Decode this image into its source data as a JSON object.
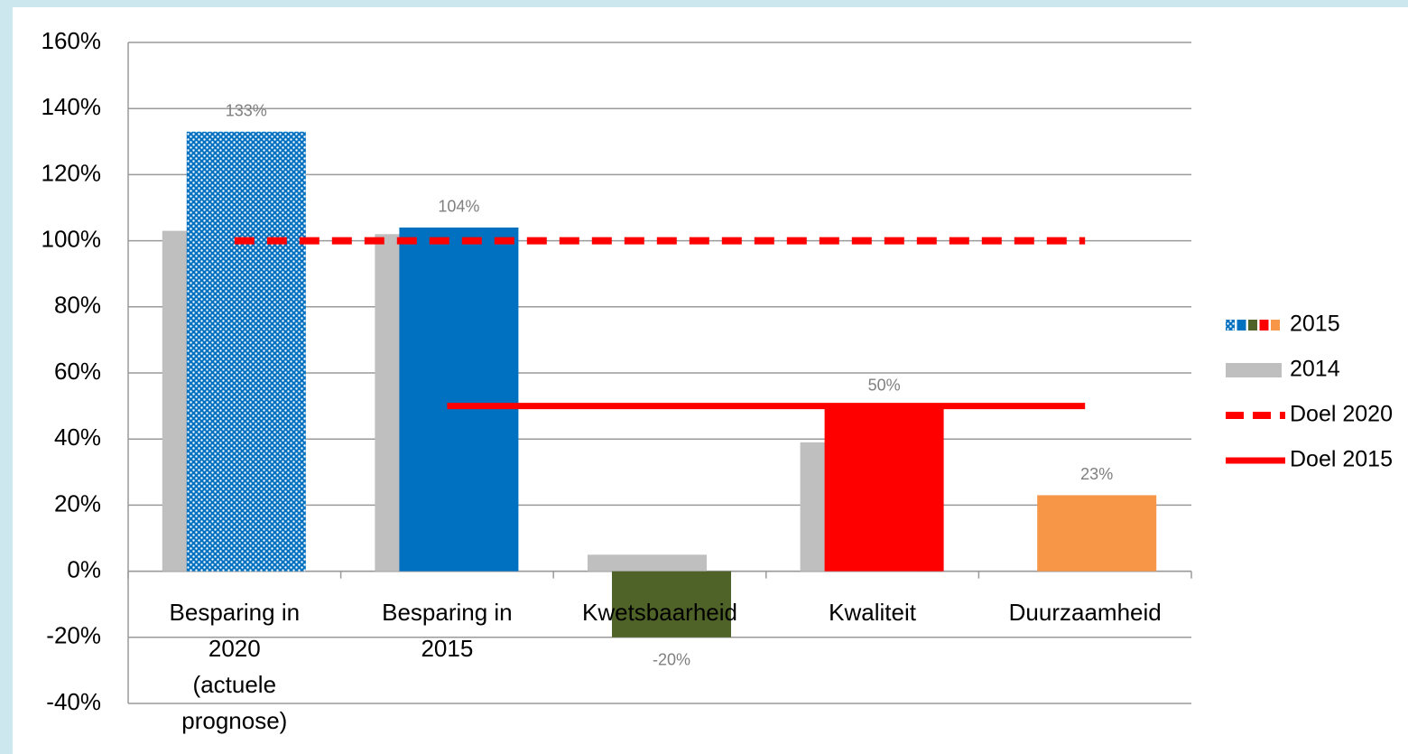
{
  "chart_data": {
    "type": "bar",
    "categories": [
      "Besparing in 2020 (actuele prognose)",
      "Besparing in 2015",
      "Kwetsbaarheid",
      "Kwaliteit",
      "Duurzaamheid"
    ],
    "series": [
      {
        "name": "2014",
        "type": "bar",
        "color": "#bfbfbf",
        "values": [
          103,
          102,
          5,
          39,
          null
        ]
      },
      {
        "name": "2015",
        "type": "bar",
        "colors": [
          "#0070c0",
          "#0070c0",
          "#4f6228",
          "#ff0000",
          "#f79646"
        ],
        "patterns": [
          "dots",
          null,
          null,
          null,
          null
        ],
        "values": [
          133,
          104,
          -20,
          50,
          23
        ],
        "value_labels": [
          "133%",
          "104%",
          "-20%",
          "50%",
          "23%"
        ]
      },
      {
        "name": "Doel 2020",
        "type": "line",
        "color": "#ff0000",
        "dashed": true,
        "values": [
          100,
          100,
          100,
          100,
          100
        ]
      },
      {
        "name": "Doel 2015",
        "type": "line",
        "color": "#ff0000",
        "dashed": false,
        "values": [
          null,
          50,
          50,
          50,
          50
        ]
      }
    ],
    "legend_order": [
      1,
      0,
      2,
      3
    ],
    "legend": "right",
    "grid": true,
    "ylim": [
      -40,
      160
    ],
    "yticks": [
      {
        "value": -40,
        "label": "-40%"
      },
      {
        "value": -20,
        "label": "-20%"
      },
      {
        "value": 0,
        "label": "0%"
      },
      {
        "value": 20,
        "label": "20%"
      },
      {
        "value": 40,
        "label": "40%"
      },
      {
        "value": 60,
        "label": "60%"
      },
      {
        "value": 80,
        "label": "80%"
      },
      {
        "value": 100,
        "label": "100%"
      },
      {
        "value": 120,
        "label": "120%"
      },
      {
        "value": 140,
        "label": "140%"
      },
      {
        "value": 160,
        "label": "160%"
      }
    ]
  }
}
